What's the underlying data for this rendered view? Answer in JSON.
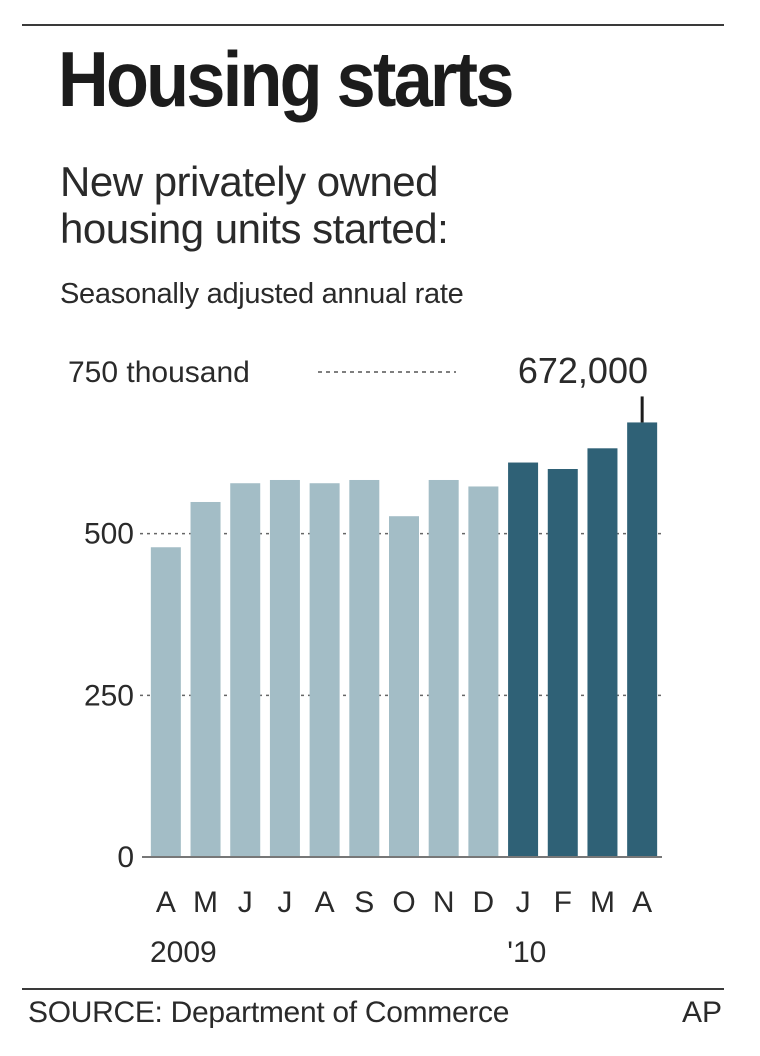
{
  "header": {
    "title": "Housing starts",
    "subtitle_line1": "New privately owned",
    "subtitle_line2": "housing units started:",
    "note": "Seasonally adjusted annual rate"
  },
  "footer": {
    "source": "SOURCE: Department of Commerce",
    "credit": "AP"
  },
  "colors": {
    "bar_2009": "#a3bdc6",
    "bar_2010": "#2f6176",
    "text": "#2a2a2a"
  },
  "chart_data": {
    "type": "bar",
    "categories": [
      "A",
      "M",
      "J",
      "J",
      "A",
      "S",
      "O",
      "N",
      "D",
      "J",
      "F",
      "M",
      "A"
    ],
    "series": [
      {
        "values": [
          479,
          549,
          578,
          583,
          578,
          583,
          527,
          583,
          573,
          610,
          600,
          632,
          672
        ]
      }
    ],
    "year_labels": [
      {
        "label": "2009",
        "start_index": 0
      },
      {
        "label": "'10",
        "start_index": 9
      }
    ],
    "highlight_from_index": 9,
    "y_ticks": [
      {
        "value": 0,
        "label": "0"
      },
      {
        "value": 250,
        "label": "250"
      },
      {
        "value": 500,
        "label": "500"
      },
      {
        "value": 750,
        "label": "750 thousand"
      }
    ],
    "callout": {
      "index": 12,
      "label": "672,000"
    },
    "ylim": [
      0,
      750
    ],
    "grid": "dotted"
  }
}
